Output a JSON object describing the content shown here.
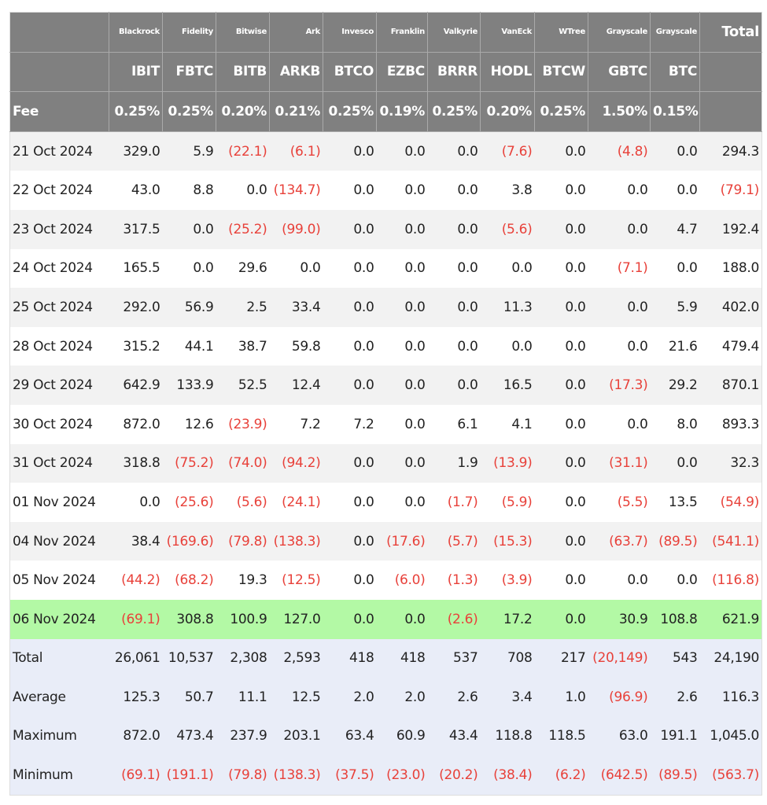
{
  "colors": {
    "header_bg": "#808080",
    "negative": "#e8413a",
    "highlight": "#b3f9a5",
    "summary_bg": "#e9edf8",
    "odd_row": "#f2f2f2"
  },
  "header": {
    "issuers": [
      "Blackrock",
      "Fidelity",
      "Bitwise",
      "Ark",
      "Invesco",
      "Franklin",
      "Valkyrie",
      "VanEck",
      "WTree",
      "Grayscale",
      "Grayscale"
    ],
    "total_label": "Total",
    "tickers": [
      "IBIT",
      "FBTC",
      "BITB",
      "ARKB",
      "BTCO",
      "EZBC",
      "BRRR",
      "HODL",
      "BTCW",
      "GBTC",
      "BTC"
    ],
    "fee_label": "Fee",
    "fees": [
      "0.25%",
      "0.25%",
      "0.20%",
      "0.21%",
      "0.25%",
      "0.19%",
      "0.25%",
      "0.20%",
      "0.25%",
      "1.50%",
      "0.15%"
    ]
  },
  "rows": [
    {
      "date": "21 Oct 2024",
      "values": [
        "329.0",
        "5.9",
        "(22.1)",
        "(6.1)",
        "0.0",
        "0.0",
        "0.0",
        "(7.6)",
        "0.0",
        "(4.8)",
        "0.0",
        "294.3"
      ]
    },
    {
      "date": "22 Oct 2024",
      "values": [
        "43.0",
        "8.8",
        "0.0",
        "(134.7)",
        "0.0",
        "0.0",
        "0.0",
        "3.8",
        "0.0",
        "0.0",
        "0.0",
        "(79.1)"
      ]
    },
    {
      "date": "23 Oct 2024",
      "values": [
        "317.5",
        "0.0",
        "(25.2)",
        "(99.0)",
        "0.0",
        "0.0",
        "0.0",
        "(5.6)",
        "0.0",
        "0.0",
        "4.7",
        "192.4"
      ]
    },
    {
      "date": "24 Oct 2024",
      "values": [
        "165.5",
        "0.0",
        "29.6",
        "0.0",
        "0.0",
        "0.0",
        "0.0",
        "0.0",
        "0.0",
        "(7.1)",
        "0.0",
        "188.0"
      ]
    },
    {
      "date": "25 Oct 2024",
      "values": [
        "292.0",
        "56.9",
        "2.5",
        "33.4",
        "0.0",
        "0.0",
        "0.0",
        "11.3",
        "0.0",
        "0.0",
        "5.9",
        "402.0"
      ]
    },
    {
      "date": "28 Oct 2024",
      "values": [
        "315.2",
        "44.1",
        "38.7",
        "59.8",
        "0.0",
        "0.0",
        "0.0",
        "0.0",
        "0.0",
        "0.0",
        "21.6",
        "479.4"
      ]
    },
    {
      "date": "29 Oct 2024",
      "values": [
        "642.9",
        "133.9",
        "52.5",
        "12.4",
        "0.0",
        "0.0",
        "0.0",
        "16.5",
        "0.0",
        "(17.3)",
        "29.2",
        "870.1"
      ]
    },
    {
      "date": "30 Oct 2024",
      "values": [
        "872.0",
        "12.6",
        "(23.9)",
        "7.2",
        "7.2",
        "0.0",
        "6.1",
        "4.1",
        "0.0",
        "0.0",
        "8.0",
        "893.3"
      ]
    },
    {
      "date": "31 Oct 2024",
      "values": [
        "318.8",
        "(75.2)",
        "(74.0)",
        "(94.2)",
        "0.0",
        "0.0",
        "1.9",
        "(13.9)",
        "0.0",
        "(31.1)",
        "0.0",
        "32.3"
      ]
    },
    {
      "date": "01 Nov 2024",
      "values": [
        "0.0",
        "(25.6)",
        "(5.6)",
        "(24.1)",
        "0.0",
        "0.0",
        "(1.7)",
        "(5.9)",
        "0.0",
        "(5.5)",
        "13.5",
        "(54.9)"
      ]
    },
    {
      "date": "04 Nov 2024",
      "values": [
        "38.4",
        "(169.6)",
        "(79.8)",
        "(138.3)",
        "0.0",
        "(17.6)",
        "(5.7)",
        "(15.3)",
        "0.0",
        "(63.7)",
        "(89.5)",
        "(541.1)"
      ]
    },
    {
      "date": "05 Nov 2024",
      "values": [
        "(44.2)",
        "(68.2)",
        "19.3",
        "(12.5)",
        "0.0",
        "(6.0)",
        "(1.3)",
        "(3.9)",
        "0.0",
        "0.0",
        "0.0",
        "(116.8)"
      ]
    },
    {
      "date": "06 Nov 2024",
      "highlight": true,
      "values": [
        "(69.1)",
        "308.8",
        "100.9",
        "127.0",
        "0.0",
        "0.0",
        "(2.6)",
        "17.2",
        "0.0",
        "30.9",
        "108.8",
        "621.9"
      ]
    }
  ],
  "summary": [
    {
      "label": "Total",
      "values": [
        "26,061",
        "10,537",
        "2,308",
        "2,593",
        "418",
        "418",
        "537",
        "708",
        "217",
        "(20,149)",
        "543",
        "24,190"
      ]
    },
    {
      "label": "Average",
      "values": [
        "125.3",
        "50.7",
        "11.1",
        "12.5",
        "2.0",
        "2.0",
        "2.6",
        "3.4",
        "1.0",
        "(96.9)",
        "2.6",
        "116.3"
      ]
    },
    {
      "label": "Maximum",
      "values": [
        "872.0",
        "473.4",
        "237.9",
        "203.1",
        "63.4",
        "60.9",
        "43.4",
        "118.8",
        "118.5",
        "63.0",
        "191.1",
        "1,045.0"
      ]
    },
    {
      "label": "Minimum",
      "values": [
        "(69.1)",
        "(191.1)",
        "(79.8)",
        "(138.3)",
        "(37.5)",
        "(23.0)",
        "(20.2)",
        "(38.4)",
        "(6.2)",
        "(642.5)",
        "(89.5)",
        "(563.7)"
      ]
    }
  ]
}
